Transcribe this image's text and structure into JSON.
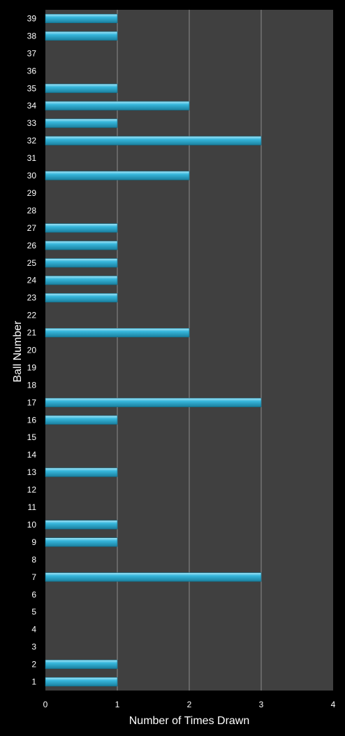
{
  "chart_data": {
    "type": "bar",
    "orientation": "horizontal",
    "title": "",
    "xlabel": "Number of Times Drawn",
    "ylabel": "Ball Number",
    "xlim": [
      0,
      4
    ],
    "xticks": [
      "0",
      "1",
      "2",
      "3",
      "4"
    ],
    "grid": "vertical",
    "legend": "none",
    "categories": [
      "1",
      "2",
      "3",
      "4",
      "5",
      "6",
      "7",
      "8",
      "9",
      "10",
      "11",
      "12",
      "13",
      "14",
      "15",
      "16",
      "17",
      "18",
      "19",
      "20",
      "21",
      "22",
      "23",
      "24",
      "25",
      "26",
      "27",
      "28",
      "29",
      "30",
      "31",
      "32",
      "33",
      "34",
      "35",
      "36",
      "37",
      "38",
      "39"
    ],
    "values": [
      1,
      1,
      0,
      0,
      0,
      0,
      3,
      0,
      1,
      1,
      0,
      0,
      1,
      0,
      0,
      1,
      3,
      0,
      0,
      0,
      2,
      0,
      1,
      1,
      1,
      1,
      1,
      0,
      0,
      2,
      0,
      3,
      1,
      2,
      1,
      0,
      0,
      1,
      1
    ]
  },
  "colors": {
    "background": "#000000",
    "plot_area": "#404040",
    "grid": "#8c8c8c",
    "bar": "#37b7dc",
    "bar_highlight": "#a8e6f8",
    "bar_shadow": "#1a7f9e",
    "text": "#ffffff"
  }
}
